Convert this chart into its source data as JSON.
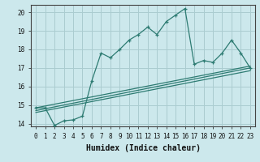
{
  "xlabel": "Humidex (Indice chaleur)",
  "background_color": "#cce8ec",
  "grid_color": "#aaccd0",
  "line_color": "#2d7b72",
  "line1_x": [
    0,
    1,
    2,
    3,
    4,
    5,
    6,
    7,
    8,
    9,
    10,
    11,
    12,
    13,
    14,
    15,
    16,
    17,
    18,
    19,
    20,
    21,
    22,
    23
  ],
  "line1_y": [
    14.85,
    14.85,
    13.9,
    14.15,
    14.2,
    14.4,
    16.3,
    17.8,
    17.55,
    18.0,
    18.5,
    18.8,
    19.2,
    18.8,
    19.5,
    19.85,
    20.2,
    17.2,
    17.4,
    17.3,
    17.8,
    18.5,
    17.8,
    17.0
  ],
  "line2_x": [
    0,
    23
  ],
  "line2_y": [
    14.85,
    17.1
  ],
  "line3_x": [
    0,
    23
  ],
  "line3_y": [
    14.6,
    16.85
  ],
  "line4_x": [
    0,
    23
  ],
  "line4_y": [
    14.7,
    17.0
  ],
  "xlim": [
    -0.5,
    23.5
  ],
  "ylim": [
    13.85,
    20.4
  ],
  "yticks": [
    14,
    15,
    16,
    17,
    18,
    19,
    20
  ],
  "xticks": [
    0,
    1,
    2,
    3,
    4,
    5,
    6,
    7,
    8,
    9,
    10,
    11,
    12,
    13,
    14,
    15,
    16,
    17,
    18,
    19,
    20,
    21,
    22,
    23
  ],
  "tick_fontsize": 5.5,
  "xlabel_fontsize": 7
}
